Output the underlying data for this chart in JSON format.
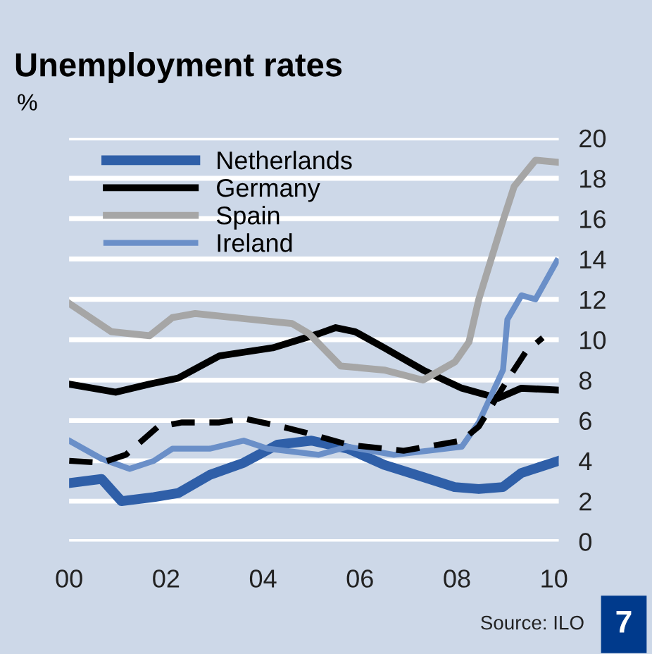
{
  "chart_data": {
    "type": "line",
    "title": "Unemployment rates",
    "ylabel": "%",
    "xlim": [
      2000,
      2010.1
    ],
    "xticks": [
      {
        "value": 2000,
        "label": "00"
      },
      {
        "value": 2002,
        "label": "02"
      },
      {
        "value": 2004,
        "label": "04"
      },
      {
        "value": 2006,
        "label": "06"
      },
      {
        "value": 2008,
        "label": "08"
      },
      {
        "value": 2010,
        "label": "10"
      }
    ],
    "ylim": [
      0,
      20
    ],
    "yticks": [
      0,
      2,
      4,
      6,
      8,
      10,
      12,
      14,
      16,
      18,
      20
    ],
    "grid": "y",
    "legend": "top left",
    "series": [
      {
        "name": "Netherlands",
        "color": "#2f5fa8",
        "x": [
          2000,
          2000.67,
          2001.08,
          2001.75,
          2002.25,
          2002.9,
          2003.6,
          2004.3,
          2005.0,
          2005.75,
          2006.5,
          2007.3,
          2007.95,
          2008.45,
          2008.95,
          2009.33,
          2010.1
        ],
        "values": [
          2.9,
          3.1,
          2.0,
          2.2,
          2.4,
          3.3,
          3.9,
          4.8,
          5.0,
          4.6,
          3.8,
          3.2,
          2.7,
          2.6,
          2.7,
          3.4,
          4.0
        ]
      },
      {
        "name": "Germany",
        "color": "#000000",
        "x": [
          2000,
          2000.96,
          2001.66,
          2002.25,
          2003.1,
          2004.2,
          2005.15,
          2005.5,
          2005.9,
          2006.5,
          2007.3,
          2008.1,
          2008.85,
          2009.33,
          2010.1
        ],
        "values": [
          7.8,
          7.4,
          7.8,
          8.1,
          9.2,
          9.6,
          10.3,
          10.6,
          10.4,
          9.6,
          8.5,
          7.6,
          7.1,
          7.6,
          7.5
        ]
      },
      {
        "name": "Spain",
        "color": "#a6a6a6",
        "x": [
          2000,
          2000.87,
          2001.66,
          2002.13,
          2002.6,
          2003.8,
          2004.6,
          2004.95,
          2005.6,
          2006.5,
          2007.3,
          2007.96,
          2008.25,
          2008.45,
          2008.95,
          2009.18,
          2009.62,
          2010.06
        ],
        "values": [
          11.8,
          10.4,
          10.2,
          11.1,
          11.3,
          11.0,
          10.8,
          10.3,
          8.7,
          8.5,
          8.0,
          8.9,
          9.9,
          12.0,
          15.9,
          17.6,
          18.9,
          18.8
        ]
      },
      {
        "name": "Ireland",
        "color": "#6a8fc8",
        "x": [
          2000,
          2000.67,
          2001.25,
          2001.75,
          2002.13,
          2002.9,
          2003.6,
          2004.1,
          2005.15,
          2005.75,
          2006.7,
          2008.1,
          2008.45,
          2008.95,
          2009.04,
          2009.33,
          2009.62,
          2010.06
        ],
        "values": [
          5.0,
          4.1,
          3.6,
          4.0,
          4.6,
          4.6,
          5.0,
          4.6,
          4.3,
          4.7,
          4.3,
          4.7,
          5.9,
          8.5,
          11.0,
          12.2,
          12.0,
          13.9
        ]
      },
      {
        "color": "#000000",
        "line_style": "dashed",
        "x": [
          2000,
          2000.67,
          2001.17,
          2001.84,
          2002.33,
          2003.1,
          2003.6,
          2004.37,
          2004.87,
          2005.75,
          2006.9,
          2008.1,
          2008.45,
          2009.04,
          2009.42,
          2009.77
        ],
        "values": [
          4.0,
          3.9,
          4.3,
          5.7,
          5.9,
          5.9,
          6.1,
          5.7,
          5.4,
          4.8,
          4.5,
          5.0,
          5.7,
          8.0,
          9.4,
          10.1
        ]
      }
    ],
    "annotations": [
      "Source: ILO",
      "7"
    ]
  }
}
